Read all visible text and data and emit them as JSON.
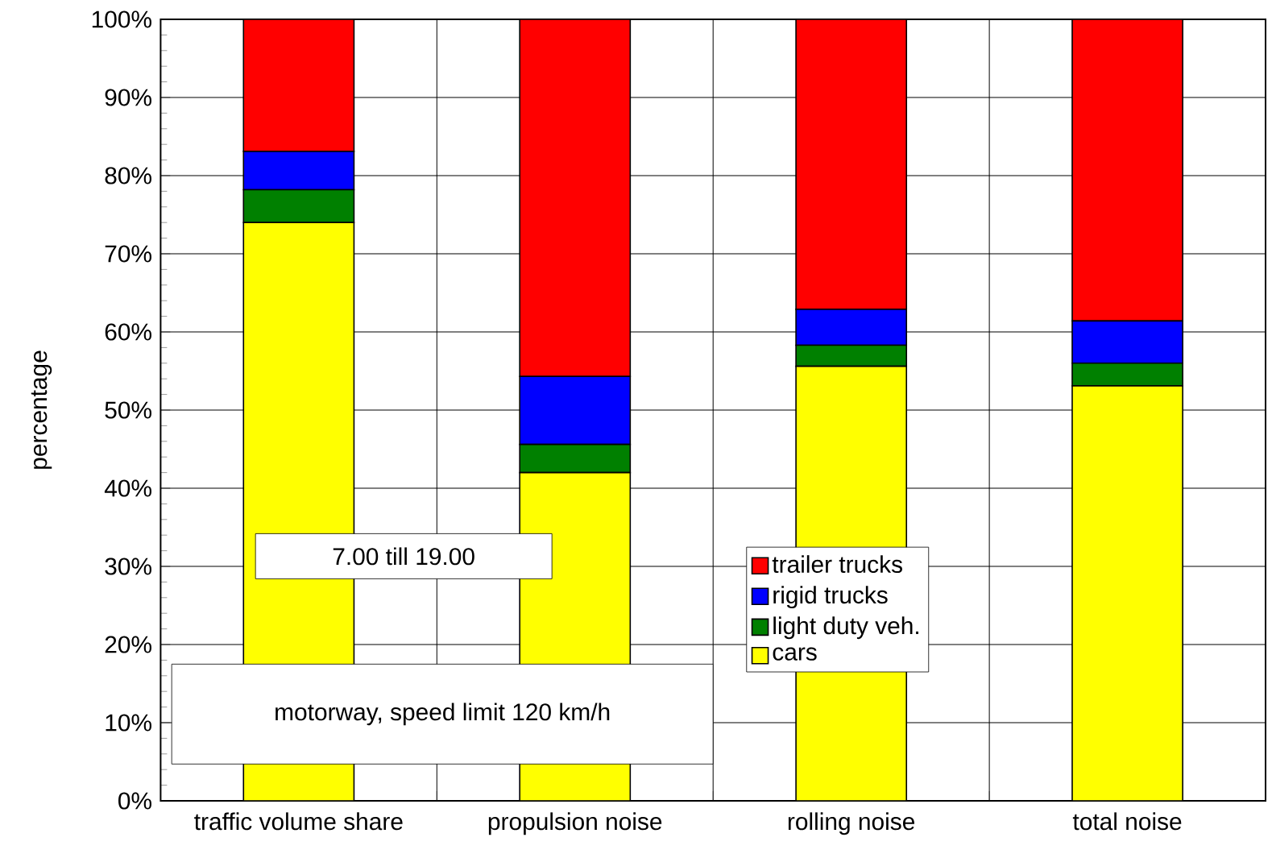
{
  "chart_data": {
    "type": "bar",
    "stacked": true,
    "ylabel": "percentage",
    "categories": [
      "traffic volume share",
      "propulsion noise",
      "rolling noise",
      "total noise"
    ],
    "series": [
      {
        "name": "cars",
        "color": "#ffff00",
        "values": [
          74,
          42,
          55.6,
          53.1
        ]
      },
      {
        "name": "light duty veh.",
        "color": "#008000",
        "values": [
          4.2,
          3.6,
          2.7,
          2.9
        ]
      },
      {
        "name": "rigid trucks",
        "color": "#0000ff",
        "values": [
          4.9,
          8.7,
          4.6,
          5.4
        ]
      },
      {
        "name": "trailer trucks",
        "color": "#ff0000",
        "values": [
          16.9,
          45.7,
          37.1,
          38.6
        ]
      }
    ],
    "ylim": [
      0,
      100
    ],
    "yticks": [
      {
        "value": 0,
        "label": "0%"
      },
      {
        "value": 10,
        "label": "10%"
      },
      {
        "value": 20,
        "label": "20%"
      },
      {
        "value": 30,
        "label": "30%"
      },
      {
        "value": 40,
        "label": "40%"
      },
      {
        "value": 50,
        "label": "50%"
      },
      {
        "value": 60,
        "label": "60%"
      },
      {
        "value": 70,
        "label": "70%"
      },
      {
        "value": 80,
        "label": "80%"
      },
      {
        "value": 90,
        "label": "90%"
      },
      {
        "value": 100,
        "label": "100%"
      }
    ],
    "grid": true,
    "legend": "bottom",
    "annotations": [
      "7.00 till 19.00",
      "motorway, speed limit 120 km/h"
    ]
  }
}
